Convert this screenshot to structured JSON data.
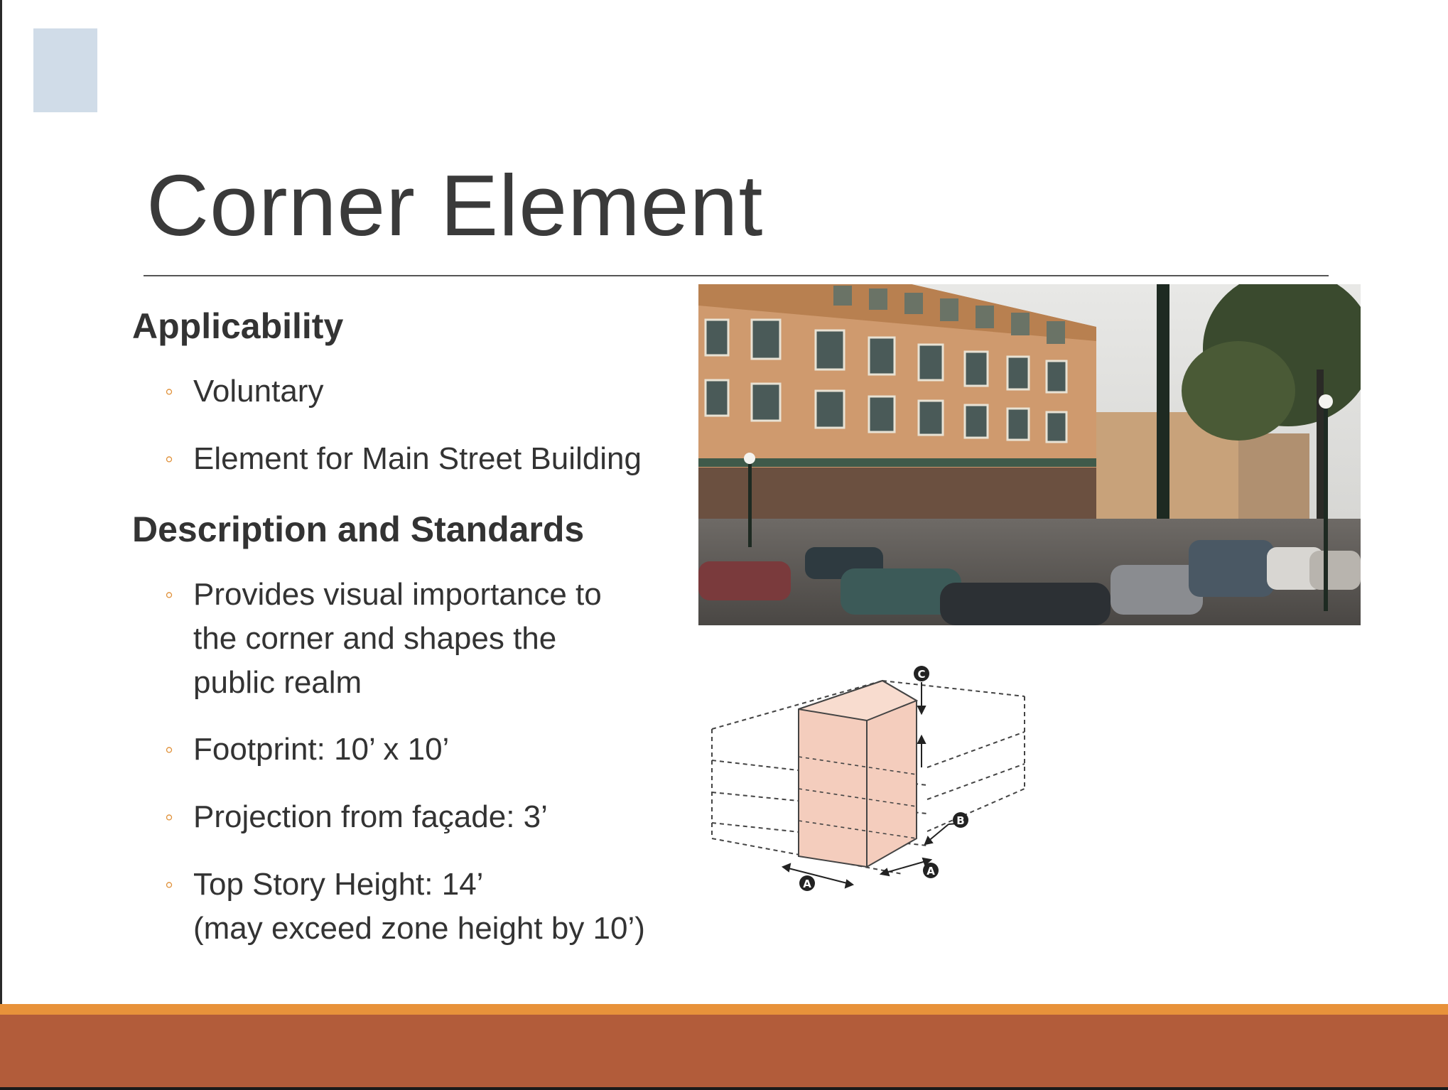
{
  "slide": {
    "title": "Corner Element",
    "sections": [
      {
        "heading": "Applicability",
        "items": [
          {
            "lines": [
              "Voluntary"
            ]
          },
          {
            "lines": [
              "Element for Main Street Building"
            ]
          }
        ]
      },
      {
        "heading": "Description and Standards",
        "items": [
          {
            "lines": [
              "Provides visual importance to",
              "the corner and shapes the",
              "public realm"
            ]
          },
          {
            "lines": [
              "Footprint: 10’ x 10’"
            ]
          },
          {
            "lines": [
              "Projection from façade: 3’"
            ]
          },
          {
            "lines": [
              "Top Story Height: 14’",
              "(may exceed zone height by 10’)"
            ]
          }
        ]
      }
    ],
    "diagram_labels": [
      "C",
      "B",
      "A",
      "A"
    ],
    "colors": {
      "accent_square": "#d0dce8",
      "bullet": "#e0913a",
      "footer_stripe": "#e8923a",
      "footer_band": "#b25c3a",
      "corner_fill": "#f4cdbd"
    }
  }
}
